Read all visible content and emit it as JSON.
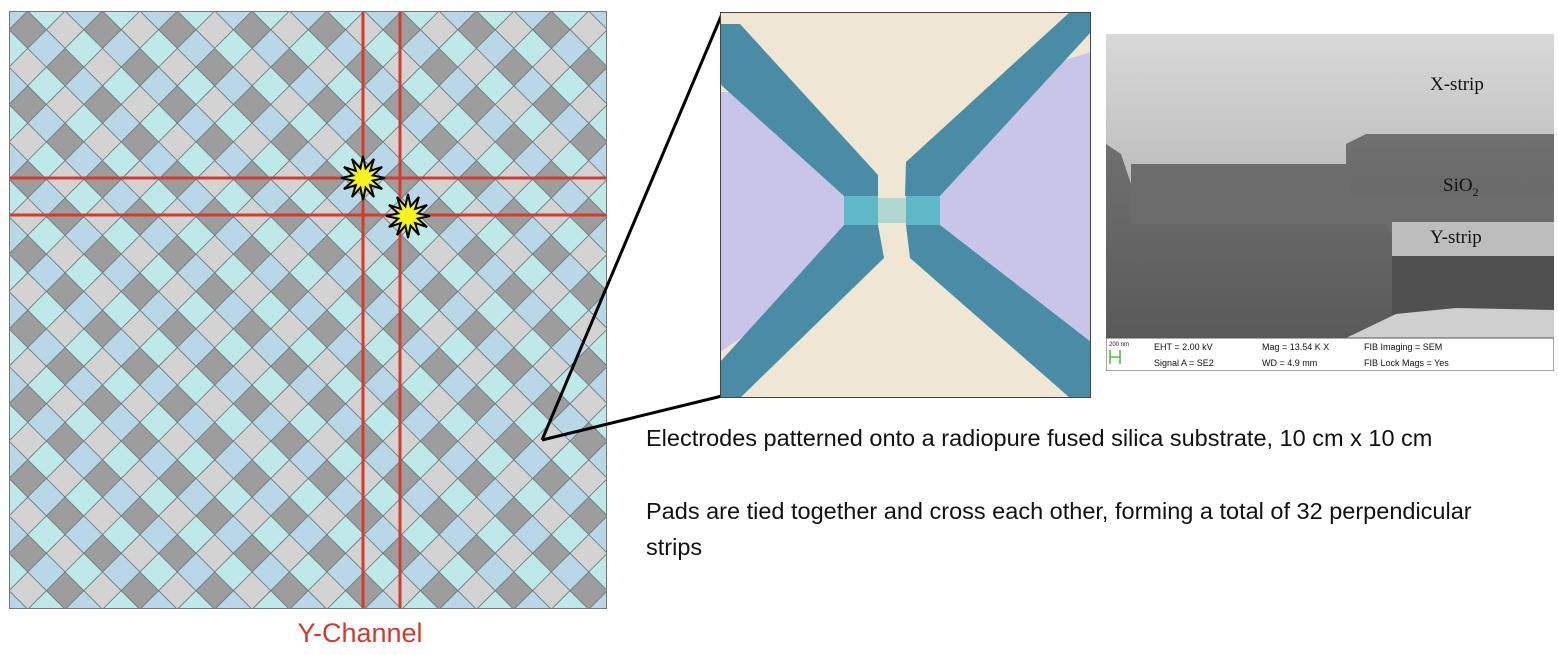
{
  "pad_grid": {
    "channel_label": "Y-Channel",
    "colors": {
      "pad_light_blue": "#b9d7e6",
      "pad_cyan": "#bfe8e8",
      "pad_grey": "#9d9d9d",
      "pad_light_grey": "#d3d3d3",
      "pad_outline": "#6a7a80",
      "strip_line": "#d23b2e",
      "hit_marker": "#f4f422"
    }
  },
  "micrograph": {
    "colors": {
      "background": "#efe7d3",
      "electrode": "#4a8ca6",
      "substrate_lilac": "#c9c5ea",
      "junction": "#5fb8c8"
    }
  },
  "sem_image": {
    "labels": {
      "x_strip": "X-strip",
      "sio2": "SiO",
      "sio2_sub": "2",
      "y_strip": "Y-strip"
    },
    "info_bar": {
      "scale_label": "200 nm",
      "eht": "EHT =  2.00 kV",
      "signal": "Signal A = SE2",
      "mag": "Mag =  13.54 K X",
      "wd": "WD =  4.9 mm",
      "fib_imaging": "FIB Imaging = SEM",
      "fib_lock": "FIB Lock Mags = Yes"
    }
  },
  "captions": {
    "substrate": "Electrodes patterned onto a radiopure fused silica substrate, 10 cm x 10 cm",
    "strips": "Pads are tied together and cross each other, forming a total of 32 perpendicular strips"
  }
}
